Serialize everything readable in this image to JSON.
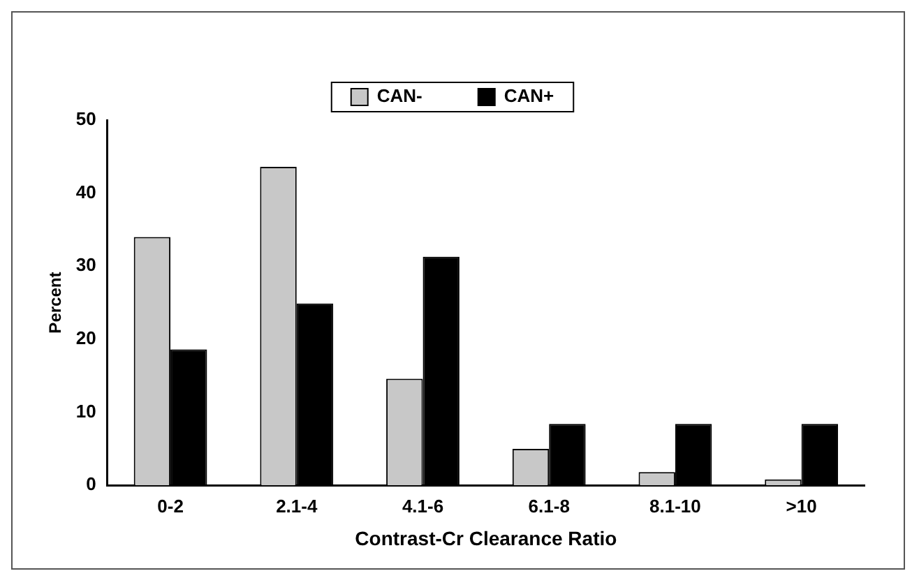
{
  "chart_data": {
    "type": "bar",
    "xlabel": "Contrast-Cr Clearance Ratio",
    "ylabel": "Percent",
    "categories": [
      "0-2",
      "2.1-4",
      "4.1-6",
      "6.1-8",
      "8.1-10",
      ">10"
    ],
    "series": [
      {
        "name": "CAN-",
        "color": "#c8c8c8",
        "values": [
          34,
          43.6,
          14.6,
          5.0,
          1.8,
          0.8
        ]
      },
      {
        "name": "CAN+",
        "color": "#000000",
        "values": [
          18.6,
          24.9,
          31.3,
          8.4,
          8.4,
          8.4
        ]
      }
    ],
    "ylim": [
      0,
      50
    ],
    "yticks": [
      0,
      10,
      20,
      30,
      40,
      50
    ],
    "grid": false,
    "legend": "top"
  }
}
